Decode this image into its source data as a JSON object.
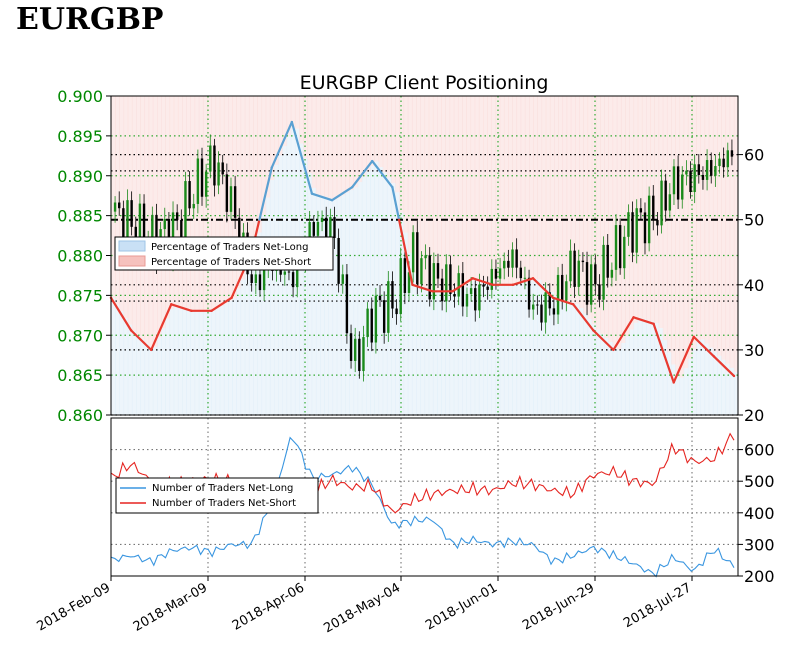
{
  "page": {
    "title": "EURGBP"
  },
  "chart_data": {
    "type": "line",
    "title": "EURGBP Client Positioning",
    "colors": {
      "bull_candle": "#1a8a1a",
      "bear_candle": "#000000",
      "net_long": "#5aa0d2",
      "net_short": "#e83a30",
      "count_long": "#3a96e0",
      "count_short": "#e52420",
      "price_axis": "#008800",
      "shade_long": "#d6e8f6",
      "shade_short": "#f9d3d0",
      "grid_green": "#33aa33"
    },
    "x_ticks": [
      "2018-Feb-09",
      "2018-Mar-09",
      "2018-Apr-06",
      "2018-May-04",
      "2018-Jun-01",
      "2018-Jun-29",
      "2018-Jul-27"
    ],
    "price_axis": {
      "ticks": [
        "0.900",
        "0.895",
        "0.890",
        "0.885",
        "0.880",
        "0.875",
        "0.870",
        "0.865",
        "0.860"
      ],
      "ylim": [
        0.86,
        0.9
      ]
    },
    "pct_axis": {
      "ticks": [
        "60",
        "50",
        "40",
        "30",
        "20"
      ],
      "ylim": [
        20,
        69
      ]
    },
    "count_axis": {
      "ticks": [
        "600",
        "500",
        "400",
        "300",
        "200"
      ],
      "ylim": [
        200,
        700
      ]
    },
    "legend_top": {
      "position": "left",
      "entries": [
        "Percentage of Traders Net-Long",
        "Percentage of Traders Net-Short"
      ]
    },
    "legend_bottom": {
      "position": "left",
      "entries": [
        "Number of Traders Net-Long",
        "Number of Traders Net-Short"
      ]
    },
    "price_weekly_close": [
      0.8855,
      0.884,
      0.882,
      0.883,
      0.888,
      0.892,
      0.886,
      0.876,
      0.879,
      0.877,
      0.884,
      0.883,
      0.866,
      0.873,
      0.874,
      0.88,
      0.877,
      0.876,
      0.8745,
      0.8775,
      0.88,
      0.873,
      0.874,
      0.879,
      0.876,
      0.88,
      0.884,
      0.885,
      0.889,
      0.89,
      0.891,
      0.893
    ],
    "pct_net_long": [
      38,
      33,
      30,
      37,
      36,
      36,
      38,
      45,
      58,
      65,
      54,
      53,
      55,
      59,
      55,
      40,
      39,
      39,
      41,
      40,
      40,
      41,
      38,
      37,
      33,
      30,
      35,
      34,
      25,
      32,
      29,
      26
    ],
    "count_net_long": [
      250,
      265,
      245,
      280,
      290,
      275,
      300,
      300,
      430,
      650,
      510,
      520,
      545,
      490,
      360,
      375,
      380,
      300,
      315,
      300,
      310,
      300,
      245,
      265,
      290,
      265,
      240,
      205,
      260,
      215,
      285,
      230
    ],
    "count_net_short": [
      510,
      555,
      500,
      490,
      505,
      505,
      500,
      490,
      435,
      420,
      465,
      505,
      480,
      485,
      400,
      440,
      460,
      470,
      475,
      470,
      495,
      490,
      470,
      460,
      520,
      530,
      500,
      490,
      610,
      560,
      570,
      650
    ]
  }
}
